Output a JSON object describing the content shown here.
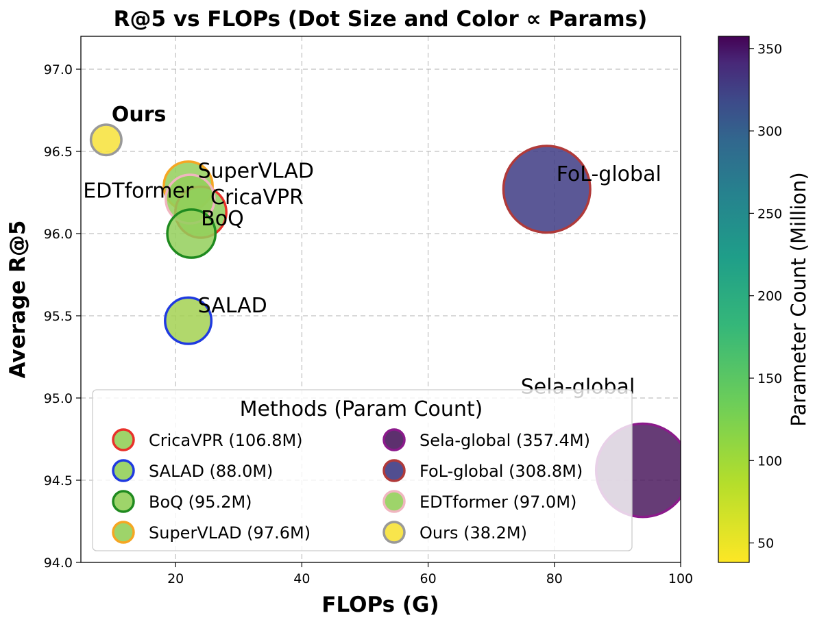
{
  "chart_data": {
    "type": "scatter",
    "title": "R@5 vs FLOPs (Dot Size and Color ∝ Params)",
    "xlabel": "FLOPs (G)",
    "ylabel": "Average R@5",
    "xlim": [
      5,
      100
    ],
    "ylim": [
      94.0,
      97.2
    ],
    "xticks": [
      20,
      40,
      60,
      80,
      100
    ],
    "xtick_labels": [
      "20",
      "40",
      "60",
      "80",
      "100"
    ],
    "yticks": [
      94.0,
      94.5,
      95.0,
      95.5,
      96.0,
      96.5,
      97.0
    ],
    "ytick_labels": [
      "94.0",
      "94.5",
      "95.0",
      "95.5",
      "96.0",
      "96.5",
      "97.0"
    ],
    "grid": true,
    "colorbar": {
      "label": "Parameter Count (Million)",
      "range": [
        38.2,
        357.4
      ],
      "ticks": [
        50,
        100,
        150,
        200,
        250,
        300,
        350
      ],
      "tick_labels": [
        "50",
        "100",
        "150",
        "200",
        "250",
        "300",
        "350"
      ],
      "colormap": "viridis_r"
    },
    "points": [
      {
        "name": "Sela-global",
        "flops": 94.0,
        "r5": 94.56,
        "params": 357.4,
        "edge": "#8b1a8b",
        "fill": "#4b1a5e",
        "label": "Sela-global",
        "bold": false,
        "label_pos": "above-left"
      },
      {
        "name": "FoL-global",
        "flops": 78.8,
        "r5": 96.27,
        "params": 308.8,
        "edge": "#b03a3a",
        "fill": "#3e3b84",
        "label": "FoL-global",
        "bold": false,
        "label_pos": "right"
      },
      {
        "name": "SuperVLAD",
        "flops": 22.0,
        "r5": 96.29,
        "params": 97.6,
        "edge": "#f5a623",
        "fill": "#93cf5a",
        "label": "SuperVLAD",
        "bold": false,
        "label_pos": "right"
      },
      {
        "name": "CricaVPR",
        "flops": 24.0,
        "r5": 96.13,
        "params": 106.8,
        "edge": "#e8312a",
        "fill": "#8dce5a",
        "label": "CricaVPR",
        "bold": false,
        "label_pos": "right"
      },
      {
        "name": "EDTformer",
        "flops": 22.3,
        "r5": 96.21,
        "params": 97.0,
        "edge": "#f0b6c0",
        "fill": "#93cf5a",
        "label": "EDTformer",
        "bold": false,
        "label_pos": "left"
      },
      {
        "name": "BoQ",
        "flops": 22.5,
        "r5": 96.0,
        "params": 95.2,
        "edge": "#1f8a1f",
        "fill": "#93cf5a",
        "label": "BoQ",
        "bold": false,
        "label_pos": "right"
      },
      {
        "name": "SALAD",
        "flops": 22.0,
        "r5": 95.47,
        "params": 88.0,
        "edge": "#1f3ae0",
        "fill": "#a3d152",
        "label": "SALAD",
        "bold": false,
        "label_pos": "right"
      },
      {
        "name": "Ours",
        "flops": 9.0,
        "r5": 96.57,
        "params": 38.2,
        "edge": "#999999",
        "fill": "#f7e238",
        "label": "Ours",
        "bold": true,
        "label_pos": "above"
      }
    ],
    "legend": {
      "title": "Methods (Param Count)",
      "position": "lower-left",
      "entries": [
        {
          "label": "CricaVPR (106.8M)",
          "edge": "#e8312a",
          "fill": "#93cf5a"
        },
        {
          "label": "Sela-global (357.4M)",
          "edge": "#8b1a8b",
          "fill": "#4b1a5e"
        },
        {
          "label": "SALAD (88.0M)",
          "edge": "#1f3ae0",
          "fill": "#93cf5a"
        },
        {
          "label": "FoL-global (308.8M)",
          "edge": "#b03a3a",
          "fill": "#3e3b84"
        },
        {
          "label": "BoQ (95.2M)",
          "edge": "#1f8a1f",
          "fill": "#93cf5a"
        },
        {
          "label": "EDTformer (97.0M)",
          "edge": "#f0b6c0",
          "fill": "#93cf5a"
        },
        {
          "label": "SuperVLAD (97.6M)",
          "edge": "#f5a623",
          "fill": "#93cf5a"
        },
        {
          "label": "Ours (38.2M)",
          "edge": "#999999",
          "fill": "#f7e238"
        }
      ]
    }
  }
}
